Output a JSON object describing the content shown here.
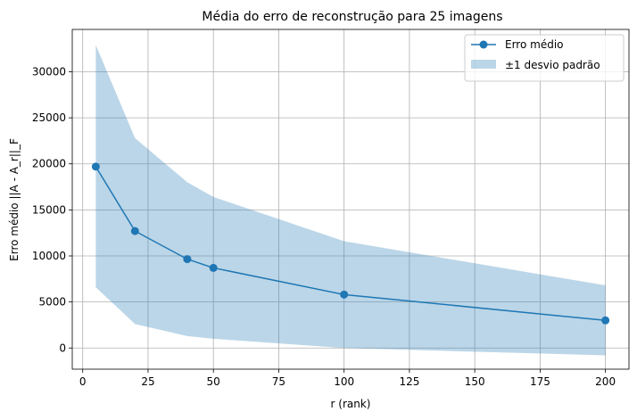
{
  "chart_data": {
    "type": "line",
    "title": "Média do erro de reconstrução para 25 imagens",
    "xlabel": "r (rank)",
    "ylabel": "Erro médio ||A - A_r||_F",
    "x": [
      5,
      20,
      40,
      50,
      100,
      200
    ],
    "series": [
      {
        "name": "Erro médio",
        "values": [
          19700,
          12700,
          9650,
          8700,
          5800,
          3000
        ],
        "color": "#1f77b4",
        "marker": "circle"
      }
    ],
    "band": {
      "name": "±1 desvio padrão",
      "upper": [
        32900,
        22800,
        18000,
        16400,
        11600,
        6800
      ],
      "lower": [
        6600,
        2600,
        1300,
        1000,
        0,
        -800
      ],
      "color": "#1f77b4",
      "opacity": 0.3
    },
    "xlim": [
      -4,
      209
    ],
    "ylim": [
      -2300,
      34600
    ],
    "xticks": [
      0,
      25,
      50,
      75,
      100,
      125,
      150,
      175,
      200
    ],
    "yticks": [
      0,
      5000,
      10000,
      15000,
      20000,
      25000,
      30000
    ],
    "grid": true,
    "legend_position": "top-right"
  }
}
